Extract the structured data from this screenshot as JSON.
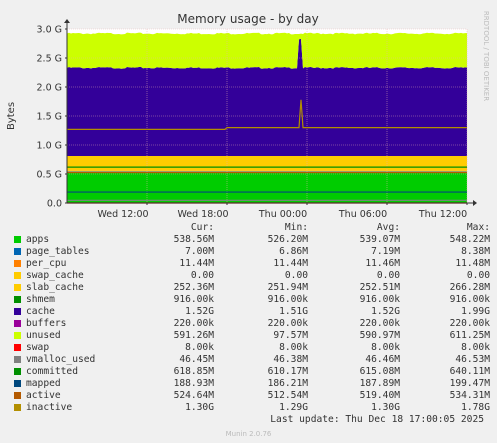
{
  "chart_data": {
    "type": "area",
    "title": "Memory usage - by day",
    "ylabel": "Bytes",
    "watermark": "RRDTOOL / TOBI OETIKER",
    "ylim": [
      0,
      3.0
    ],
    "yunit": "G",
    "yticks": [
      "0.0",
      "0.5 G",
      "1.0 G",
      "1.5 G",
      "2.0 G",
      "2.5 G",
      "3.0 G"
    ],
    "ytick_values": [
      0,
      0.5,
      1.0,
      1.5,
      2.0,
      2.5,
      3.0
    ],
    "xlim": [
      0,
      30
    ],
    "xlabel_note": "hours since start of displayed window",
    "xticks": [
      "Wed 12:00",
      "Wed 18:00",
      "Thu 00:00",
      "Thu 06:00",
      "Thu 12:00"
    ],
    "xtick_values": [
      6,
      12,
      18,
      24,
      30
    ],
    "stacked_series_gb": [
      {
        "name": "apps",
        "value": 0.5386,
        "color": "#00cc00"
      },
      {
        "name": "page_tables",
        "value": 0.007,
        "color": "#0066b3"
      },
      {
        "name": "per_cpu",
        "value": 0.0114,
        "color": "#ff8000"
      },
      {
        "name": "swap_cache",
        "value": 0.0,
        "color": "#ffcc00"
      },
      {
        "name": "slab_cache",
        "value": 0.2524,
        "color": "#ffcc00"
      },
      {
        "name": "shmem",
        "value": 0.0009,
        "color": "#008f00"
      },
      {
        "name": "cache",
        "value": 1.52,
        "color": "#330099"
      },
      {
        "name": "buffers",
        "value": 0.0002,
        "color": "#990099"
      },
      {
        "name": "unused",
        "value": 0.5913,
        "color": "#ccff00"
      }
    ],
    "line_series_gb": [
      {
        "name": "swap",
        "value": 8e-06,
        "color": "#ff0000"
      },
      {
        "name": "vmalloc_used",
        "value": 0.0465,
        "color": "#808080"
      },
      {
        "name": "committed",
        "value": 0.6189,
        "color": "#008f00"
      },
      {
        "name": "mapped",
        "value": 0.1889,
        "color": "#00487d"
      },
      {
        "name": "active",
        "value": 0.5246,
        "color": "#b35a00"
      },
      {
        "name": "inactive",
        "value": 1.3,
        "color": "#b38f00"
      }
    ],
    "spike": {
      "x": 17.5,
      "cache_peak": 2.78,
      "inactive_peak": 1.78
    }
  },
  "legend": {
    "headers": [
      "Cur:",
      "Min:",
      "Avg:",
      "Max:"
    ],
    "rows": [
      {
        "name": "apps",
        "color": "#00cc00",
        "cur": "538.56M",
        "min": "526.20M",
        "avg": "539.07M",
        "max": "548.22M"
      },
      {
        "name": "page_tables",
        "color": "#0066b3",
        "cur": "7.00M",
        "min": "6.86M",
        "avg": "7.19M",
        "max": "8.38M"
      },
      {
        "name": "per_cpu",
        "color": "#ff8000",
        "cur": "11.44M",
        "min": "11.44M",
        "avg": "11.46M",
        "max": "11.48M"
      },
      {
        "name": "swap_cache",
        "color": "#ffcc00",
        "cur": "0.00",
        "min": "0.00",
        "avg": "0.00",
        "max": "0.00"
      },
      {
        "name": "slab_cache",
        "color": "#ffcc00",
        "cur": "252.36M",
        "min": "251.94M",
        "avg": "252.51M",
        "max": "266.28M"
      },
      {
        "name": "shmem",
        "color": "#008f00",
        "cur": "916.00k",
        "min": "916.00k",
        "avg": "916.00k",
        "max": "916.00k"
      },
      {
        "name": "cache",
        "color": "#330099",
        "cur": "1.52G",
        "min": "1.51G",
        "avg": "1.52G",
        "max": "1.99G"
      },
      {
        "name": "buffers",
        "color": "#990099",
        "cur": "220.00k",
        "min": "220.00k",
        "avg": "220.00k",
        "max": "220.00k"
      },
      {
        "name": "unused",
        "color": "#ccff00",
        "cur": "591.26M",
        "min": "97.57M",
        "avg": "590.97M",
        "max": "611.25M"
      },
      {
        "name": "swap",
        "color": "#ff0000",
        "cur": "8.00k",
        "min": "8.00k",
        "avg": "8.00k",
        "max": "8.00k"
      },
      {
        "name": "vmalloc_used",
        "color": "#808080",
        "cur": "46.45M",
        "min": "46.38M",
        "avg": "46.46M",
        "max": "46.53M"
      },
      {
        "name": "committed",
        "color": "#008f00",
        "cur": "618.85M",
        "min": "610.17M",
        "avg": "615.08M",
        "max": "640.11M"
      },
      {
        "name": "mapped",
        "color": "#00487d",
        "cur": "188.93M",
        "min": "186.21M",
        "avg": "187.89M",
        "max": "199.47M"
      },
      {
        "name": "active",
        "color": "#b35a00",
        "cur": "524.64M",
        "min": "512.54M",
        "avg": "519.40M",
        "max": "534.31M"
      },
      {
        "name": "inactive",
        "color": "#b38f00",
        "cur": "1.30G",
        "min": "1.29G",
        "avg": "1.30G",
        "max": "1.78G"
      }
    ]
  },
  "footer": {
    "last_update": "Last update: Thu Dec 18 17:00:05 2025",
    "generator": "Munin 2.0.76"
  }
}
